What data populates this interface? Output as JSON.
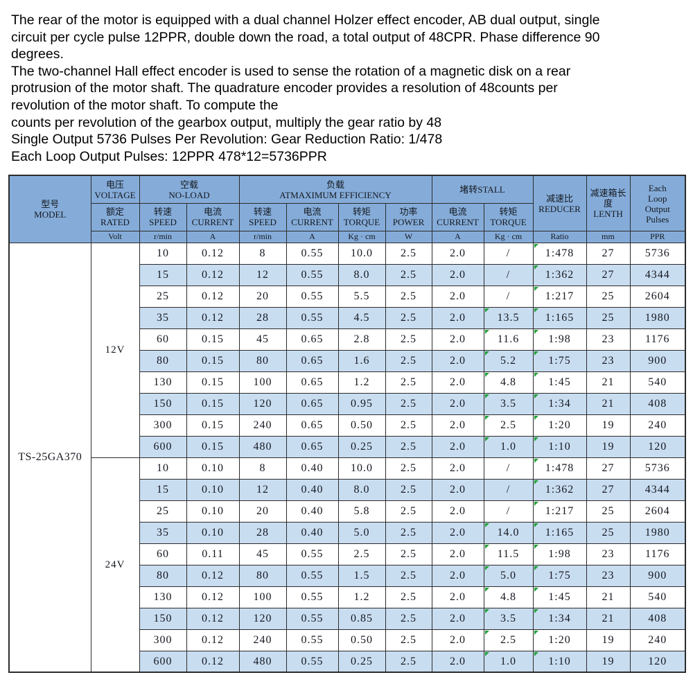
{
  "colors": {
    "header_bg": "#85ACD9",
    "row_stripe": "#C9DDF1",
    "border": "#2b2b2b",
    "text": "#14181f",
    "flag_green": "#21a038"
  },
  "intro": {
    "lines": [
      "The rear of the motor is equipped with a dual channel Holzer effect encoder, AB dual output, single",
      "circuit per cycle pulse 12PPR, double down the road, a total output of 48CPR. Phase difference 90",
      "degrees.",
      "The two-channel Hall effect encoder is used to sense the rotation of a magnetic disk on a rear",
      "protrusion of the motor shaft. The quadrature encoder provides a resolution of 48counts per",
      "revolution of the motor shaft. To compute the",
      "counts per revolution of the gearbox output, multiply the gear ratio by 48",
      "Single Output 5736 Pulses Per Revolution: Gear Reduction Ratio: 1/478",
      "Each Loop Output Pulses: 12PPR 478*12=5736PPR"
    ]
  },
  "table": {
    "header": {
      "model": "型号\nMODEL",
      "voltage": "电压\nVOLTAGE",
      "rated": "额定\nRATED",
      "noload": "空载\nNO-LOAD",
      "load": "负载\nATMAXIMUM EFFICIENCY",
      "stall": "堵转STALL",
      "reducer": "减速比\nREDUCER",
      "length": "减速箱长度\nLENTH",
      "ppr": "Each\nLoop\nOutput\nPulses",
      "speed": "转速\nSPEED",
      "current": "电流\nCURRENT",
      "torque": "转矩\nTORQUE",
      "power": "功率\nPOWER",
      "units": [
        "Volt",
        "r/min",
        "A",
        "r/min",
        "A",
        "Kg · cm",
        "W",
        "A",
        "Kg · cm",
        "Ratio",
        "mm",
        "PPR"
      ]
    },
    "model": "TS-25GA370",
    "groups": [
      {
        "voltage": "12V",
        "rows": [
          [
            "10",
            "0.12",
            "8",
            "0.55",
            "10.0",
            "2.5",
            "2.0",
            "/",
            "1:478",
            "27",
            "5736"
          ],
          [
            "15",
            "0.12",
            "12",
            "0.55",
            "8.0",
            "2.5",
            "2.0",
            "/",
            "1:362",
            "27",
            "4344"
          ],
          [
            "25",
            "0.12",
            "20",
            "0.55",
            "5.5",
            "2.5",
            "2.0",
            "/",
            "1:217",
            "25",
            "2604"
          ],
          [
            "35",
            "0.12",
            "28",
            "0.55",
            "4.5",
            "2.5",
            "2.0",
            "13.5",
            "1:165",
            "25",
            "1980"
          ],
          [
            "60",
            "0.15",
            "45",
            "0.65",
            "2.8",
            "2.5",
            "2.0",
            "11.6",
            "1:98",
            "23",
            "1176"
          ],
          [
            "80",
            "0.15",
            "80",
            "0.65",
            "1.6",
            "2.5",
            "2.0",
            "5.2",
            "1:75",
            "23",
            "900"
          ],
          [
            "130",
            "0.15",
            "100",
            "0.65",
            "1.2",
            "2.5",
            "2.0",
            "4.8",
            "1:45",
            "21",
            "540"
          ],
          [
            "150",
            "0.15",
            "120",
            "0.65",
            "0.95",
            "2.5",
            "2.0",
            "3.5",
            "1:34",
            "21",
            "408"
          ],
          [
            "300",
            "0.15",
            "240",
            "0.65",
            "0.50",
            "2.5",
            "2.0",
            "2.5",
            "1:20",
            "19",
            "240"
          ],
          [
            "600",
            "0.15",
            "480",
            "0.65",
            "0.25",
            "2.5",
            "2.0",
            "1.0",
            "1:10",
            "19",
            "120"
          ]
        ]
      },
      {
        "voltage": "24V",
        "rows": [
          [
            "10",
            "0.10",
            "8",
            "0.40",
            "10.0",
            "2.5",
            "2.0",
            "/",
            "1:478",
            "27",
            "5736"
          ],
          [
            "15",
            "0.10",
            "12",
            "0.40",
            "8.0",
            "2.5",
            "2.0",
            "/",
            "1:362",
            "27",
            "4344"
          ],
          [
            "25",
            "0.10",
            "20",
            "0.40",
            "5.8",
            "2.5",
            "2.0",
            "/",
            "1:217",
            "25",
            "2604"
          ],
          [
            "35",
            "0.10",
            "28",
            "0.40",
            "5.0",
            "2.5",
            "2.0",
            "14.0",
            "1:165",
            "25",
            "1980"
          ],
          [
            "60",
            "0.11",
            "45",
            "0.55",
            "2.5",
            "2.5",
            "2.0",
            "11.5",
            "1:98",
            "23",
            "1176"
          ],
          [
            "80",
            "0.12",
            "80",
            "0.55",
            "1.5",
            "2.5",
            "2.0",
            "5.0",
            "1:75",
            "23",
            "900"
          ],
          [
            "130",
            "0.12",
            "100",
            "0.55",
            "1.2",
            "2.5",
            "2.0",
            "4.8",
            "1:45",
            "21",
            "540"
          ],
          [
            "150",
            "0.12",
            "120",
            "0.55",
            "0.85",
            "2.5",
            "2.0",
            "3.5",
            "1:34",
            "21",
            "408"
          ],
          [
            "300",
            "0.12",
            "240",
            "0.55",
            "0.50",
            "2.5",
            "2.0",
            "2.5",
            "1:20",
            "19",
            "240"
          ],
          [
            "600",
            "0.12",
            "480",
            "0.55",
            "0.25",
            "2.5",
            "2.0",
            "1.0",
            "1:10",
            "19",
            "120"
          ]
        ]
      }
    ]
  }
}
